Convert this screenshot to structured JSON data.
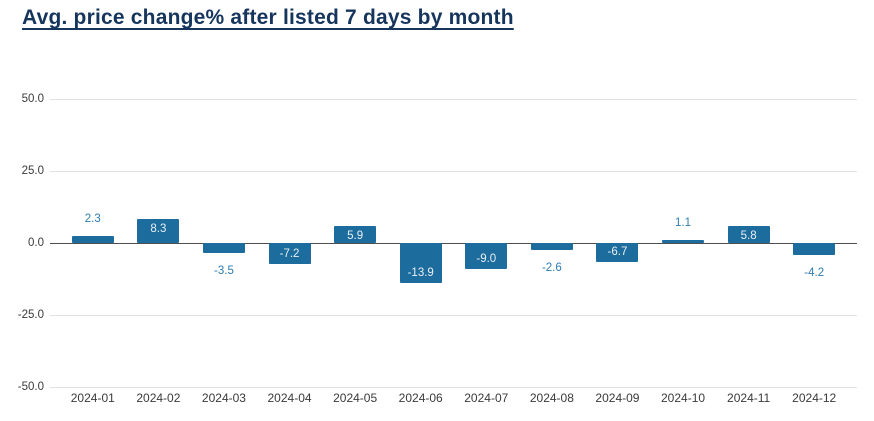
{
  "page": {
    "title": "Avg. price change% after listed 7 days by month"
  },
  "colors": {
    "bar": "#1d6c9e",
    "label_inside": "#e9eff4",
    "label_outside": "#2d7cb1",
    "title": "#16355c",
    "axis_text": "#3a3a3a",
    "gridline": "#e2e2e2",
    "zero_line": "#4f4f4f",
    "background": "#ffffff"
  },
  "chart_data": {
    "type": "bar",
    "title": "Avg. price change% after listed 7 days by month",
    "xlabel": "",
    "ylabel": "",
    "categories": [
      "2024-01",
      "2024-02",
      "2024-03",
      "2024-04",
      "2024-05",
      "2024-06",
      "2024-07",
      "2024-08",
      "2024-09",
      "2024-10",
      "2024-11",
      "2024-12"
    ],
    "values": [
      2.3,
      8.3,
      -3.5,
      -7.2,
      5.9,
      -13.9,
      -9.0,
      -2.6,
      -6.7,
      1.1,
      5.8,
      -4.2
    ],
    "value_labels": [
      "2.3",
      "8.3",
      "-3.5",
      "-7.2",
      "5.9",
      "-13.9",
      "-9.0",
      "-2.6",
      "-6.7",
      "1.1",
      "5.8",
      "-4.2"
    ],
    "ylim": [
      -50,
      50
    ],
    "yticks": [
      50.0,
      25.0,
      0.0,
      -25.0,
      -50.0
    ],
    "ytick_labels": [
      "50.0",
      "25.0",
      "0.0",
      "-25.0",
      "-50.0"
    ],
    "grid": true,
    "legend": false,
    "inside_label_threshold": 5
  }
}
